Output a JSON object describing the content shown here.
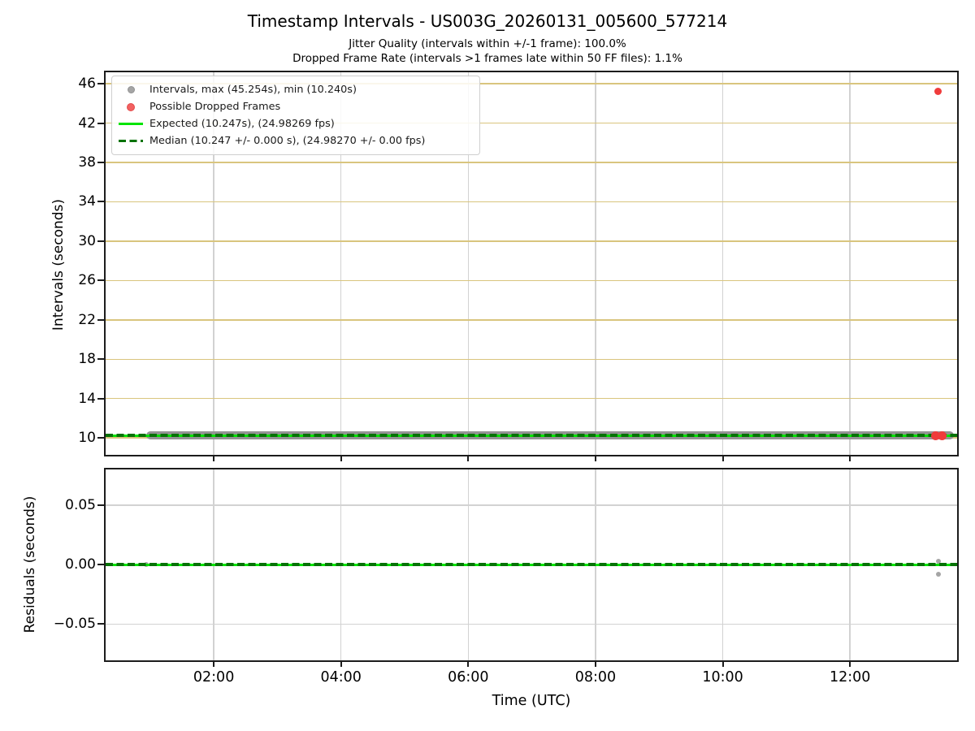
{
  "figure": {
    "title": "Timestamp Intervals - US003G_20260131_005600_577214",
    "subtitle_line1": "Jitter Quality (intervals within +/-1 frame): 100.0%",
    "subtitle_line2": "Dropped Frame Rate (intervals >1 frames late within 50 FF files): 1.1%"
  },
  "colors": {
    "grid_khaki": "#d9c57e",
    "grid_gray": "#d2d2d2",
    "spine": "#1c1c1c",
    "expected_green": "#00e400",
    "median_darkgreen": "#077207",
    "interval_gray": "#949494",
    "scatter_gray": "#a5a5a5",
    "dropped_red": "#f03c3c",
    "text": "#000000"
  },
  "legend": {
    "items": [
      {
        "marker": "gray-dot",
        "label": "Intervals, max (45.254s), min (10.240s)"
      },
      {
        "marker": "red-dot",
        "label": "Possible Dropped Frames"
      },
      {
        "marker": "green-line",
        "label": "Expected (10.247s), (24.98269 fps)"
      },
      {
        "marker": "darkgreen-dashed",
        "label": "Median (10.247 +/- 0.000 s), (24.98270 +/- 0.00 fps)"
      }
    ]
  },
  "x_axis": {
    "label": "Time (UTC)",
    "ticks": [
      {
        "label": "02:00",
        "minutes": 120
      },
      {
        "label": "04:00",
        "minutes": 240
      },
      {
        "label": "06:00",
        "minutes": 360
      },
      {
        "label": "08:00",
        "minutes": 480
      },
      {
        "label": "10:00",
        "minutes": 600
      },
      {
        "label": "12:00",
        "minutes": 720
      }
    ],
    "xlim_minutes": [
      18,
      821
    ]
  },
  "chart_data": [
    {
      "type": "scatter",
      "name": "timestamp-intervals",
      "ylabel": "Intervals (seconds)",
      "ylim": [
        8.28,
        47.16
      ],
      "y_ticks": [
        {
          "label": "10",
          "value": 10
        },
        {
          "label": "14",
          "value": 14
        },
        {
          "label": "18",
          "value": 18
        },
        {
          "label": "22",
          "value": 22
        },
        {
          "label": "26",
          "value": 26
        },
        {
          "label": "30",
          "value": 30
        },
        {
          "label": "34",
          "value": 34
        },
        {
          "label": "38",
          "value": 38
        },
        {
          "label": "42",
          "value": 42
        },
        {
          "label": "46",
          "value": 46
        }
      ],
      "grid_y_color_key": "grid_khaki",
      "grid_x_color_key": "grid_gray",
      "stats": {
        "jitter_quality_pct": 100.0,
        "dropped_frame_rate_pct": 1.1,
        "max_interval_s": 45.254,
        "min_interval_s": 10.24,
        "expected_interval_s": 10.247,
        "expected_fps": 24.98269,
        "median_interval_s": 10.247,
        "median_fps": 24.9827,
        "ff_file_window": 50
      },
      "series": [
        {
          "name": "intervals-band",
          "style": "scatter-band",
          "color_key": "interval_gray",
          "value_s": 10.247,
          "start_minutes": 56,
          "end_minutes": 818,
          "thickness_px": 10
        },
        {
          "name": "expected-line",
          "style": "solid-line",
          "color_key": "expected_green",
          "value_s": 10.247
        },
        {
          "name": "median-line",
          "style": "dashed-line",
          "color_key": "median_darkgreen",
          "value_s": 10.247
        },
        {
          "name": "possible-dropped-frames",
          "style": "scatter",
          "color_key": "dropped_red",
          "marker_px": 9,
          "points": [
            {
              "minutes": 803,
              "value": 45.254,
              "size": 9
            },
            {
              "minutes": 801,
              "value": 10.247,
              "size": 11
            },
            {
              "minutes": 807,
              "value": 10.247,
              "size": 11
            }
          ]
        }
      ]
    },
    {
      "type": "scatter",
      "name": "residuals",
      "ylabel": "Residuals (seconds)",
      "ylim": [
        -0.0805,
        0.08
      ],
      "y_ticks": [
        {
          "label": "0.05",
          "value": 0.05
        },
        {
          "label": "0.00",
          "value": 0.0
        },
        {
          "label": "−0.05",
          "value": -0.05
        }
      ],
      "grid_y_color_key": "grid_gray",
      "grid_x_color_key": "grid_gray",
      "series": [
        {
          "name": "residual-points",
          "style": "scatter",
          "color_key": "scatter_gray",
          "marker_px": 6,
          "points": [
            {
              "minutes": 56,
              "value": 0.0
            },
            {
              "minutes": 803,
              "value": 0.003
            },
            {
              "minutes": 803,
              "value": -0.008
            }
          ]
        },
        {
          "name": "expected-zero-line",
          "style": "solid-line",
          "color_key": "expected_green",
          "value_s": 0.0
        },
        {
          "name": "median-zero-line",
          "style": "dashed-line",
          "color_key": "median_darkgreen",
          "value_s": 0.0
        }
      ]
    }
  ]
}
